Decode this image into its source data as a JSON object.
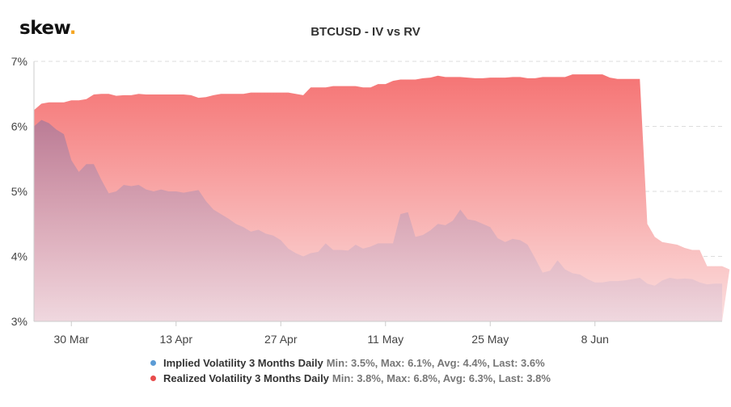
{
  "brand": {
    "name": "skew",
    "dot": "."
  },
  "chart_data": {
    "type": "area",
    "title": "BTCUSD - IV vs RV",
    "y_tick_labels": [
      "3%",
      "4%",
      "5%",
      "6%",
      "7%"
    ],
    "y_ticks": [
      3,
      4,
      5,
      6,
      7
    ],
    "ylim": [
      3,
      7
    ],
    "x_tick_labels": [
      "30 Mar",
      "13 Apr",
      "27 Apr",
      "11 May",
      "25 May",
      "8 Jun"
    ],
    "x_tick_index": [
      5,
      19,
      33,
      47,
      61,
      75
    ],
    "grid": true,
    "legend_placement": "bottom",
    "series": [
      {
        "name": "Implied Volatility 3 Months Daily",
        "stats": "Min: 3.5%, Max: 6.1%, Avg: 4.4%, Last: 3.6%",
        "color": "#5b9bd5",
        "values": [
          6.0,
          6.1,
          6.05,
          5.95,
          5.88,
          5.48,
          5.3,
          5.42,
          5.42,
          5.18,
          4.97,
          5.0,
          5.1,
          5.08,
          5.1,
          5.03,
          5.0,
          5.03,
          5.0,
          5.0,
          4.98,
          5.0,
          5.02,
          4.85,
          4.72,
          4.65,
          4.58,
          4.5,
          4.45,
          4.38,
          4.41,
          4.35,
          4.32,
          4.25,
          4.12,
          4.05,
          4.0,
          4.05,
          4.07,
          4.2,
          4.1,
          4.1,
          4.09,
          4.18,
          4.12,
          4.15,
          4.2,
          4.2,
          4.2,
          4.65,
          4.68,
          4.3,
          4.33,
          4.4,
          4.5,
          4.48,
          4.55,
          4.72,
          4.57,
          4.55,
          4.5,
          4.45,
          4.28,
          4.22,
          4.27,
          4.25,
          4.18,
          3.97,
          3.75,
          3.78,
          3.94,
          3.8,
          3.74,
          3.72,
          3.65,
          3.6,
          3.6,
          3.62,
          3.62,
          3.63,
          3.65,
          3.67,
          3.58,
          3.55,
          3.63,
          3.67,
          3.65,
          3.66,
          3.65,
          3.6,
          3.57,
          3.58,
          3.58
        ]
      },
      {
        "name": "Realized Volatility 3 Months Daily",
        "stats": "Min: 3.8%, Max: 6.8%, Avg: 6.3%, Last: 3.8%",
        "color": "#e84c4c",
        "values": [
          6.25,
          6.35,
          6.37,
          6.37,
          6.37,
          6.4,
          6.4,
          6.42,
          6.49,
          6.5,
          6.5,
          6.47,
          6.48,
          6.48,
          6.5,
          6.49,
          6.49,
          6.49,
          6.49,
          6.49,
          6.49,
          6.48,
          6.44,
          6.45,
          6.48,
          6.5,
          6.5,
          6.5,
          6.5,
          6.52,
          6.52,
          6.52,
          6.52,
          6.52,
          6.52,
          6.5,
          6.48,
          6.6,
          6.6,
          6.6,
          6.62,
          6.62,
          6.62,
          6.62,
          6.6,
          6.6,
          6.65,
          6.65,
          6.7,
          6.72,
          6.72,
          6.72,
          6.74,
          6.75,
          6.78,
          6.76,
          6.76,
          6.76,
          6.75,
          6.74,
          6.74,
          6.75,
          6.75,
          6.75,
          6.76,
          6.76,
          6.74,
          6.74,
          6.76,
          6.76,
          6.76,
          6.76,
          6.8,
          6.8,
          6.8,
          6.8,
          6.8,
          6.75,
          6.73,
          6.73,
          6.73,
          6.73,
          4.5,
          4.3,
          4.22,
          4.2,
          4.18,
          4.13,
          4.1,
          4.1,
          3.85,
          3.85,
          3.85,
          3.8
        ]
      }
    ]
  }
}
